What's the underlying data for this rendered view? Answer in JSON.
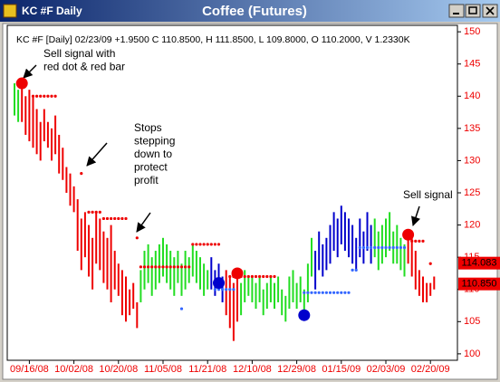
{
  "window": {
    "title": "KC #F Daily"
  },
  "chart_data": {
    "type": "ohlc",
    "title": "Coffee (Futures)",
    "header": "KC #F [Daily] 02/23/09 +1.9500 C 110.8500, H 111.8500, L 109.8000, O 110.2000, V 1.2330K",
    "ylim": [
      99,
      151
    ],
    "yticks": [
      100,
      105,
      110,
      115,
      120,
      125,
      130,
      135,
      140,
      145,
      150
    ],
    "categories": [
      null,
      null,
      null,
      null,
      "09/16/08",
      null,
      null,
      null,
      null,
      null,
      null,
      null,
      null,
      null,
      null,
      null,
      "10/02/08",
      null,
      null,
      null,
      null,
      null,
      null,
      null,
      null,
      null,
      null,
      null,
      "10/20/08",
      null,
      null,
      null,
      null,
      null,
      null,
      null,
      null,
      null,
      null,
      null,
      "11/05/08",
      null,
      null,
      null,
      null,
      null,
      null,
      null,
      null,
      null,
      null,
      null,
      "11/21/08",
      null,
      null,
      null,
      null,
      null,
      null,
      null,
      null,
      null,
      null,
      null,
      "12/10/08",
      null,
      null,
      null,
      null,
      null,
      null,
      null,
      null,
      null,
      null,
      null,
      "12/29/08",
      null,
      null,
      null,
      null,
      null,
      null,
      null,
      null,
      null,
      null,
      null,
      "01/15/09",
      null,
      null,
      null,
      null,
      null,
      null,
      null,
      null,
      null,
      null,
      null,
      "02/03/09",
      null,
      null,
      null,
      null,
      null,
      null,
      null,
      null,
      null,
      null,
      null,
      "02/20/09",
      null
    ],
    "bars": {
      "high": [
        142,
        141,
        142,
        140,
        141,
        140,
        138,
        136,
        138,
        136,
        135,
        137,
        134,
        132,
        129,
        128,
        126,
        124,
        121,
        122,
        120,
        118,
        122,
        121,
        119,
        118,
        120,
        116,
        114,
        113,
        112,
        110,
        111,
        108,
        113,
        116,
        117,
        115,
        116,
        117,
        118,
        117,
        116,
        115,
        116,
        114,
        116,
        115,
        117,
        116,
        115,
        114,
        113,
        115,
        113,
        114,
        112,
        113,
        112,
        111,
        112,
        111,
        113,
        112,
        112,
        111,
        112,
        110,
        111,
        112,
        111,
        112,
        110,
        109,
        112,
        113,
        111,
        112,
        110,
        114,
        118,
        116,
        119,
        117,
        118,
        120,
        122,
        121,
        123,
        122,
        121,
        120,
        118,
        121,
        119,
        122,
        120,
        121,
        119,
        120,
        121,
        122,
        119,
        120,
        118,
        117,
        119,
        118,
        116,
        113,
        112,
        111,
        111,
        112
      ],
      "low": [
        137,
        136,
        136,
        134,
        133,
        132,
        131,
        130,
        133,
        132,
        130,
        131,
        128,
        127,
        125,
        123,
        122,
        116,
        113,
        115,
        112,
        110,
        114,
        113,
        111,
        110,
        108,
        110,
        109,
        106,
        105,
        106,
        107,
        104,
        108,
        110,
        111,
        109,
        110,
        111,
        112,
        111,
        110,
        109,
        111,
        109,
        110,
        111,
        112,
        111,
        110,
        109,
        110,
        110,
        109,
        110,
        108,
        106,
        104,
        102,
        105,
        106,
        108,
        109,
        108,
        107,
        108,
        106,
        107,
        108,
        107,
        108,
        106,
        105,
        107,
        108,
        107,
        108,
        106,
        108,
        112,
        110,
        113,
        112,
        113,
        114,
        116,
        115,
        117,
        116,
        115,
        114,
        113,
        115,
        114,
        116,
        114,
        115,
        113,
        114,
        115,
        116,
        114,
        114,
        113,
        112,
        114,
        112,
        110,
        109,
        108,
        108,
        109,
        110
      ],
      "colors": [
        "#2d2",
        "#2d2",
        "#e00",
        "#e00",
        "#e00",
        "#e00",
        "#e00",
        "#e00",
        "#e00",
        "#e00",
        "#e00",
        "#e00",
        "#e00",
        "#e00",
        "#e00",
        "#e00",
        "#e00",
        "#e00",
        "#e00",
        "#e00",
        "#e00",
        "#e00",
        "#e00",
        "#e00",
        "#e00",
        "#e00",
        "#e00",
        "#e00",
        "#e00",
        "#e00",
        "#e00",
        "#e00",
        "#e00",
        "#e00",
        "#2d2",
        "#2d2",
        "#2d2",
        "#2d2",
        "#2d2",
        "#2d2",
        "#2d2",
        "#2d2",
        "#2d2",
        "#2d2",
        "#2d2",
        "#2d2",
        "#2d2",
        "#2d2",
        "#2d2",
        "#2d2",
        "#2d2",
        "#2d2",
        "#2d2",
        "#00c",
        "#00c",
        "#00c",
        "#00c",
        "#e00",
        "#e00",
        "#e00",
        "#e00",
        "#2d2",
        "#2d2",
        "#2d2",
        "#2d2",
        "#2d2",
        "#2d2",
        "#2d2",
        "#2d2",
        "#2d2",
        "#2d2",
        "#2d2",
        "#2d2",
        "#2d2",
        "#2d2",
        "#2d2",
        "#2d2",
        "#2d2",
        "#2d2",
        "#2d2",
        "#2d2",
        "#00c",
        "#00c",
        "#00c",
        "#00c",
        "#00c",
        "#00c",
        "#00c",
        "#00c",
        "#00c",
        "#00c",
        "#00c",
        "#00c",
        "#00c",
        "#00c",
        "#00c",
        "#00c",
        "#2d2",
        "#2d2",
        "#2d2",
        "#2d2",
        "#2d2",
        "#2d2",
        "#2d2",
        "#2d2",
        "#2d2",
        "#e00",
        "#e00",
        "#e00",
        "#e00",
        "#e00",
        "#e00",
        "#e00",
        "#e00"
      ]
    },
    "stops": [
      {
        "color": "#e00",
        "values": [
          null,
          null,
          null,
          null,
          null,
          140,
          140,
          140,
          140,
          140,
          140,
          140,
          null,
          null,
          null,
          null,
          null,
          null,
          128,
          null,
          122,
          122,
          122,
          122,
          121,
          121,
          121,
          121,
          121,
          121,
          121,
          null,
          null,
          118,
          113.5,
          113.5,
          113.5,
          113.5,
          113.5,
          113.5,
          113.5,
          113.5,
          113.5,
          113.5,
          113.5,
          113.5,
          113.5,
          113.5,
          117,
          117,
          117,
          117,
          117,
          117,
          117,
          117,
          null,
          null,
          112,
          112,
          112,
          112,
          112,
          112,
          112,
          112,
          112,
          112,
          112,
          112,
          112,
          null,
          null,
          null,
          null,
          null,
          null,
          null,
          null,
          null,
          null,
          null,
          null,
          null,
          null,
          null,
          null,
          null,
          null,
          null,
          null,
          null,
          null,
          null,
          null,
          null,
          null,
          null,
          null,
          null,
          null,
          null,
          null,
          null,
          null,
          null,
          null,
          117.5,
          117.5,
          117.5,
          117.5,
          null,
          114,
          null
        ]
      },
      {
        "color": "#36f",
        "values": [
          null,
          null,
          null,
          null,
          null,
          null,
          null,
          null,
          null,
          null,
          null,
          null,
          null,
          null,
          null,
          null,
          null,
          null,
          null,
          null,
          null,
          null,
          null,
          null,
          null,
          null,
          null,
          null,
          null,
          null,
          null,
          null,
          null,
          null,
          null,
          null,
          null,
          null,
          null,
          null,
          null,
          null,
          null,
          null,
          null,
          107,
          null,
          null,
          null,
          null,
          null,
          null,
          null,
          null,
          110,
          110,
          110,
          110,
          110,
          110,
          null,
          null,
          null,
          null,
          null,
          null,
          null,
          null,
          null,
          null,
          null,
          null,
          null,
          null,
          null,
          null,
          null,
          null,
          109.5,
          109.5,
          109.5,
          109.5,
          109.5,
          109.5,
          109.5,
          109.5,
          109.5,
          109.5,
          109.5,
          109.5,
          109.5,
          113,
          113,
          116.5,
          116.5,
          116.5,
          116.5,
          116.5,
          116.5,
          116.5,
          116.5,
          116.5,
          116.5,
          116.5,
          116.5,
          116.5,
          null,
          null,
          null,
          null,
          null,
          null,
          null,
          null
        ]
      }
    ],
    "signals": [
      {
        "bar": 2,
        "value": 142,
        "color": "#e00"
      },
      {
        "bar": 55,
        "value": 111,
        "color": "#00c"
      },
      {
        "bar": 60,
        "value": 112.5,
        "color": "#e00"
      },
      {
        "bar": 78,
        "value": 106,
        "color": "#00c"
      },
      {
        "bar": 106,
        "value": 118.5,
        "color": "#e00"
      }
    ],
    "price_markers": [
      {
        "value": 114.083,
        "color": "#e00"
      },
      {
        "value": 110.85,
        "label": "110.850",
        "color": "#e00"
      }
    ],
    "annotations": [
      [
        "Sell signal with",
        "red dot & red bar"
      ],
      [
        "Stops",
        "stepping",
        "down to",
        "protect",
        "profit"
      ],
      [
        "Sell signal"
      ]
    ]
  }
}
